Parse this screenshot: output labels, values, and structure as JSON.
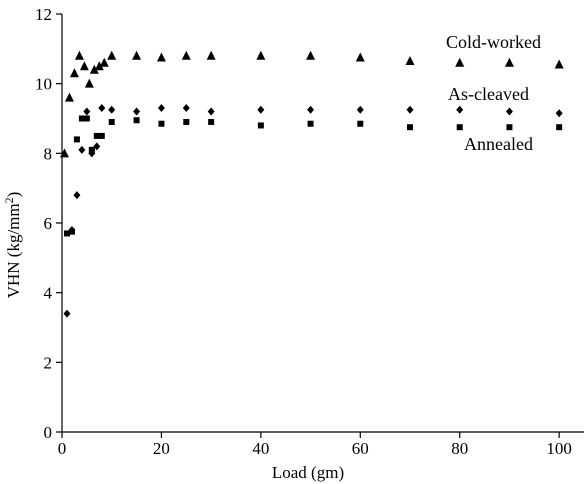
{
  "chart_data": {
    "type": "scatter",
    "title": "",
    "xlabel": "Load (gm)",
    "ylabel": "VHN (kg/mm2)",
    "ylabel_main": "VHN (kg/mm",
    "ylabel_sup": "2",
    "ylabel_end": ")",
    "xlim": [
      0,
      105
    ],
    "ylim": [
      0,
      12
    ],
    "xticks": [
      0,
      20,
      40,
      60,
      80,
      100
    ],
    "yticks": [
      0,
      2,
      4,
      6,
      8,
      10,
      12
    ],
    "grid": false,
    "legend": "inline labels",
    "series": [
      {
        "name": "Cold-worked",
        "marker": "triangle",
        "color": "#000000",
        "x": [
          0.5,
          1.5,
          2.5,
          3.5,
          4.5,
          5.5,
          6.5,
          7.5,
          8.5,
          10,
          15,
          20,
          25,
          30,
          40,
          50,
          60,
          70,
          80,
          90,
          100
        ],
        "y": [
          8.0,
          9.6,
          10.3,
          10.8,
          10.5,
          10.0,
          10.4,
          10.5,
          10.6,
          10.8,
          10.8,
          10.75,
          10.8,
          10.8,
          10.8,
          10.8,
          10.75,
          10.65,
          10.6,
          10.6,
          10.55
        ]
      },
      {
        "name": "As-cleaved",
        "marker": "diamond",
        "color": "#000000",
        "x": [
          1,
          2,
          3,
          4,
          5,
          6,
          7,
          8,
          10,
          15,
          20,
          25,
          30,
          40,
          50,
          60,
          70,
          80,
          90,
          100
        ],
        "y": [
          3.4,
          5.8,
          6.8,
          8.1,
          9.2,
          8.0,
          8.2,
          9.3,
          9.25,
          9.2,
          9.3,
          9.3,
          9.2,
          9.25,
          9.25,
          9.25,
          9.25,
          9.25,
          9.2,
          9.15
        ]
      },
      {
        "name": "Annealed",
        "marker": "square",
        "color": "#000000",
        "x": [
          1,
          2,
          3,
          4,
          5,
          6,
          7,
          8,
          10,
          15,
          20,
          25,
          30,
          40,
          50,
          60,
          70,
          80,
          90,
          100
        ],
        "y": [
          5.7,
          5.75,
          8.4,
          9.0,
          9.0,
          8.1,
          8.5,
          8.5,
          8.9,
          8.95,
          8.85,
          8.9,
          8.9,
          8.8,
          8.85,
          8.85,
          8.75,
          8.75,
          8.75,
          8.75
        ]
      }
    ]
  }
}
